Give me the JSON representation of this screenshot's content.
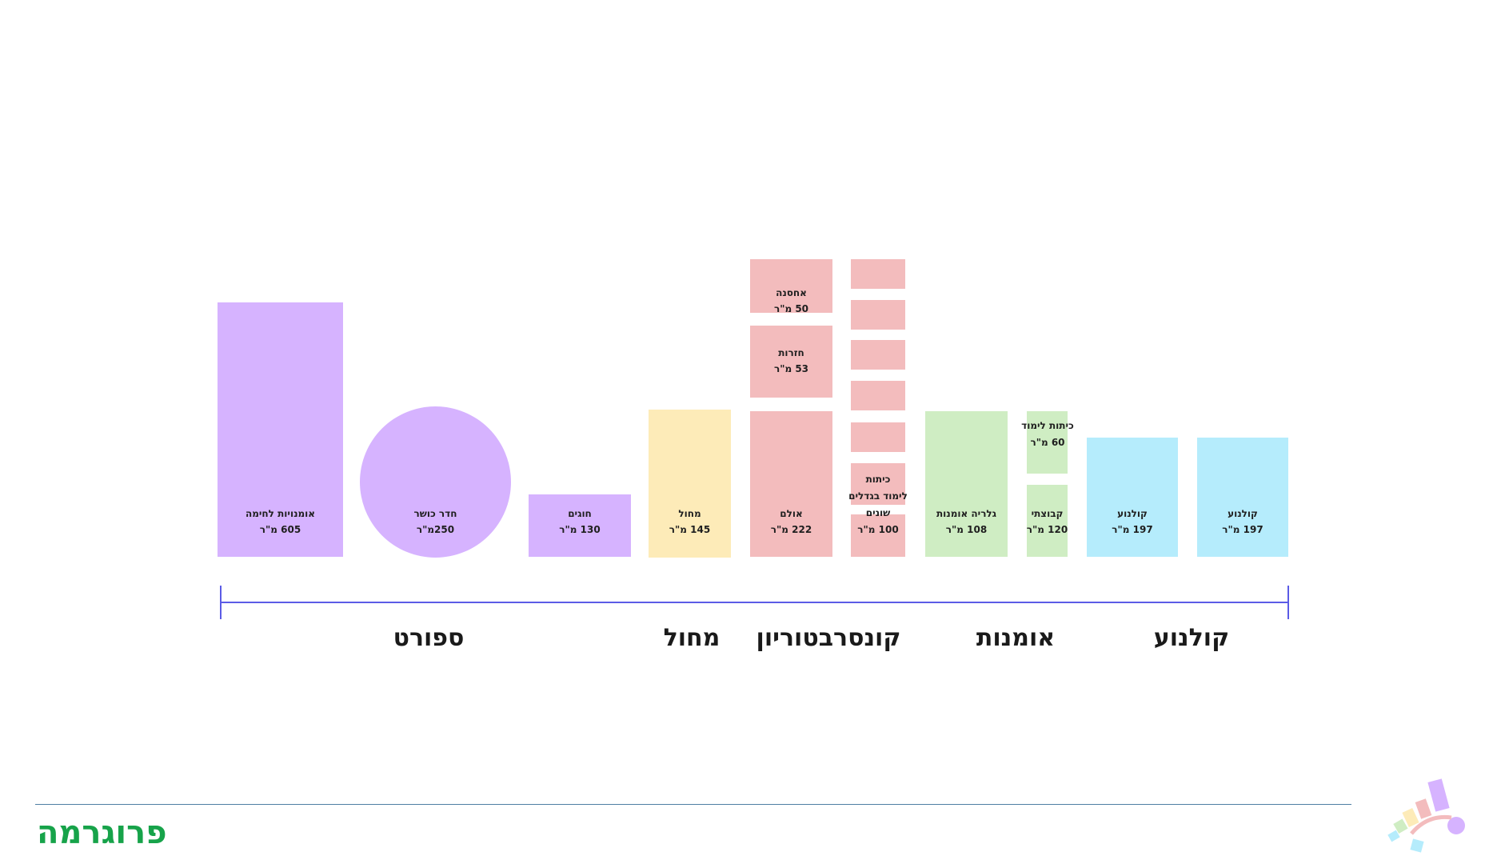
{
  "title": "פרוגרמה",
  "categories": {
    "sport": "ספורט",
    "dance": "מחול",
    "conservatory": "קונסרבטוריון",
    "art": "אומנות",
    "cinema": "קולנוע"
  },
  "rooms": {
    "martial_arts": {
      "name": "אומנויות לחימה",
      "area": "605 מ\"ר"
    },
    "gym": {
      "name": "חדר כושר",
      "area": "250מ\"ר"
    },
    "clubs": {
      "name": "חוגים",
      "area": "130 מ\"ר"
    },
    "dance_hall": {
      "name": "מחול",
      "area": "145 מ\"ר"
    },
    "storage": {
      "name": "אחסנה",
      "area": "50 מ\"ר"
    },
    "rehearsals": {
      "name": "חזרות",
      "area": "53 מ\"ר"
    },
    "hall": {
      "name": "אולם",
      "area": "222 מ\"ר"
    },
    "classrooms_sizes": {
      "line1": "כיתות",
      "line2": "לימוד בגדלים",
      "line3": "שונים",
      "area": "100 מ\"ר"
    },
    "gallery": {
      "name": "גלריה אומנות",
      "area": "108 מ\"ר"
    },
    "art_classroom": {
      "name": "כיתות לימוד",
      "area": "60 מ\"ר"
    },
    "group": {
      "name": "קבוצתי",
      "area": "120 מ\"ר"
    },
    "cinema_1": {
      "name": "קולנוע",
      "area": "197 מ\"ר"
    },
    "cinema_2": {
      "name": "קולנוע",
      "area": "197 מ\"ר"
    }
  },
  "colors": {
    "sport": "#d6b3ff",
    "dance": "#fdebb8",
    "conservatory": "#f3bcbd",
    "art": "#cfedc3",
    "cinema": "#b5ecfc",
    "axis": "#5b5be6",
    "title": "#17a34a"
  }
}
